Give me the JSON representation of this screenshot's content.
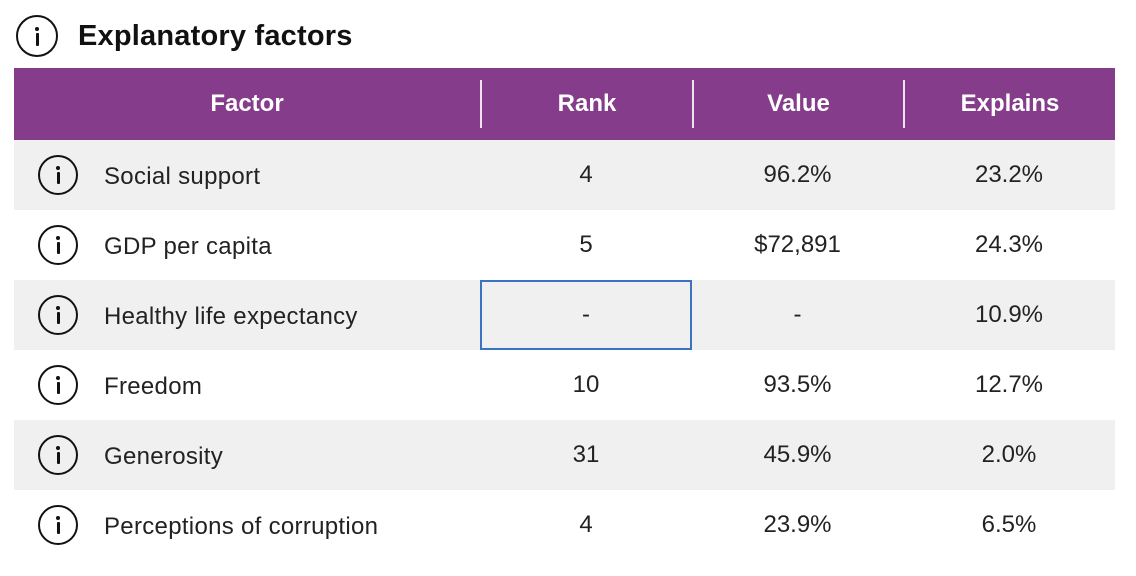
{
  "section": {
    "title": "Explanatory factors",
    "icon": "info-icon"
  },
  "table": {
    "columns": {
      "factor": "Factor",
      "rank": "Rank",
      "value": "Value",
      "explains": "Explains"
    },
    "header_color": "#853c8b",
    "rows": [
      {
        "factor": "Social support",
        "rank": "4",
        "value": "96.2%",
        "explains": "23.2%"
      },
      {
        "factor": "GDP per capita",
        "rank": "5",
        "value": "$72,891",
        "explains": "24.3%"
      },
      {
        "factor": "Healthy life expectancy",
        "rank": "-",
        "value": "-",
        "explains": "10.9%"
      },
      {
        "factor": "Freedom",
        "rank": "10",
        "value": "93.5%",
        "explains": "12.7%"
      },
      {
        "factor": "Generosity",
        "rank": "31",
        "value": "45.9%",
        "explains": "2.0%"
      },
      {
        "factor": "Perceptions of corruption",
        "rank": "4",
        "value": "23.9%",
        "explains": "6.5%"
      }
    ],
    "selected_cell": {
      "row": 2,
      "column": "rank"
    }
  }
}
